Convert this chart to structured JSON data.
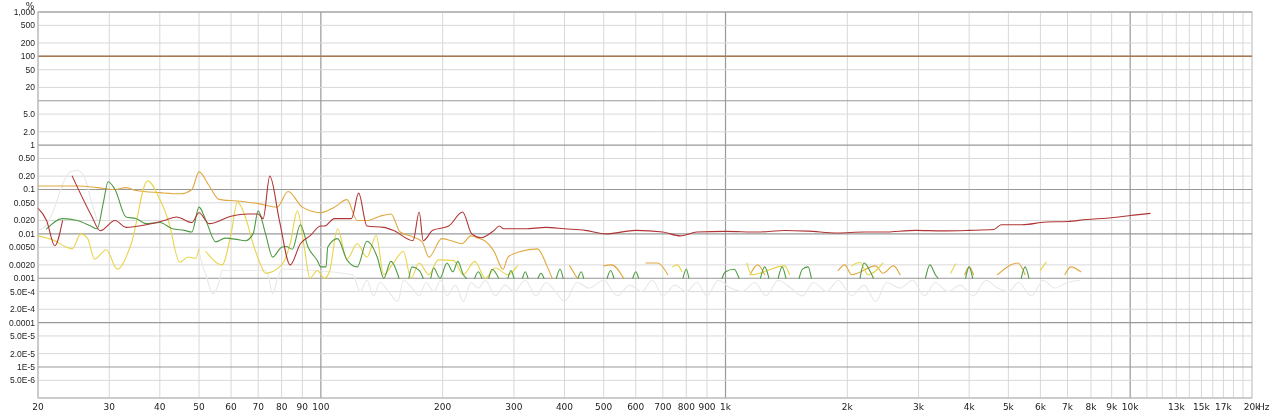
{
  "chart_data": {
    "type": "line",
    "ylabel": "%",
    "xlabel": "Hz",
    "log": "xy",
    "grid": true,
    "marker": "none",
    "line_style": "solid",
    "xlim": [
      20,
      20000
    ],
    "ylim": [
      2e-06,
      1000
    ],
    "xticks": [
      20,
      30,
      40,
      50,
      60,
      70,
      80,
      90,
      100,
      200,
      300,
      400,
      500,
      600,
      700,
      800,
      900,
      {
        "value": 1000,
        "label": "1k"
      },
      {
        "value": 2000,
        "label": "2k"
      },
      {
        "value": 3000,
        "label": "3k"
      },
      {
        "value": 4000,
        "label": "4k"
      },
      {
        "value": 5000,
        "label": "5k"
      },
      {
        "value": 6000,
        "label": "6k"
      },
      {
        "value": 7000,
        "label": "7k"
      },
      {
        "value": 8000,
        "label": "8k"
      },
      {
        "value": 9000,
        "label": "9k"
      },
      {
        "value": 10000,
        "label": "10k"
      },
      {
        "value": 11000,
        "label": null
      },
      {
        "value": 12000,
        "label": null
      },
      {
        "value": 13000,
        "label": "13k"
      },
      {
        "value": 14000,
        "label": null
      },
      {
        "value": 15000,
        "label": "15k"
      },
      {
        "value": 16000,
        "label": null
      },
      {
        "value": 17000,
        "label": "17k"
      },
      {
        "value": 18000,
        "label": null
      },
      {
        "value": 19000,
        "label": null
      },
      {
        "value": 20000,
        "label": "20k"
      }
    ],
    "yticks": [
      {
        "value": 1000,
        "label": "1,000"
      },
      500,
      200,
      100,
      50,
      20,
      {
        "value": 10,
        "label": null
      },
      {
        "value": 5,
        "label": "5.0"
      },
      {
        "value": 2,
        "label": "2.0"
      },
      1,
      {
        "value": 0.5,
        "label": "0.50"
      },
      {
        "value": 0.2,
        "label": "0.20"
      },
      0.1,
      {
        "value": 0.05,
        "label": "0.050"
      },
      {
        "value": 0.02,
        "label": "0.020"
      },
      0.01,
      {
        "value": 0.005,
        "label": "0.0050"
      },
      {
        "value": 0.002,
        "label": "0.0020"
      },
      0.001,
      {
        "value": 0.0005,
        "label": "5.0E-4"
      },
      {
        "value": 0.0002,
        "label": "2.0E-4"
      },
      0.0001,
      {
        "value": 5e-05,
        "label": "5.0E-5"
      },
      {
        "value": 2e-05,
        "label": "2.0E-5"
      },
      {
        "value": 1e-05,
        "label": "1E-5"
      },
      {
        "value": 5e-06,
        "label": "5.0E-6"
      }
    ],
    "ref_lines": [
      {
        "axis": "y",
        "value": 100,
        "color": "#a87850"
      }
    ],
    "series": [
      {
        "color": "#e8e8e8",
        "x": [
          20,
          21,
          22,
          23,
          24,
          25,
          26,
          27,
          28,
          29,
          50,
          51,
          52,
          54,
          56,
          57,
          73,
          74,
          76,
          78,
          80,
          120,
          125,
          130,
          135,
          140,
          147,
          155,
          160,
          168,
          175,
          182,
          190,
          198,
          205,
          215,
          225,
          235,
          245,
          255,
          270,
          285,
          300,
          320,
          340,
          360,
          380,
          400,
          430,
          460,
          500,
          540,
          580,
          620,
          660,
          700,
          750,
          800,
          850,
          900,
          960,
          1030,
          1100,
          1180,
          1260,
          1350,
          1450,
          1550,
          1650,
          1780,
          1900,
          2050,
          2200,
          2350,
          2500,
          2700,
          2900,
          3100,
          3300,
          3550,
          3800,
          4100,
          4400,
          4700,
          5000,
          5300,
          5700,
          6100,
          6500,
          7000,
          7500
        ],
        "values": [
          0.012,
          0.016,
          0.04,
          0.13,
          0.25,
          0.27,
          0.2,
          0.06,
          0.02,
          null,
          0.004,
          0.002,
          0.0012,
          0.00045,
          0.0008,
          0.0015,
          0.0015,
          0.0012,
          0.00045,
          0.0009,
          0.0016,
          0.0012,
          0.0005,
          0.0009,
          0.0004,
          0.0008,
          0.0005,
          0.0003,
          0.0009,
          0.0006,
          0.0004,
          0.0008,
          0.0005,
          0.0009,
          0.0004,
          0.0007,
          0.0003,
          0.0008,
          0.0006,
          0.0009,
          0.0004,
          0.0007,
          0.0005,
          0.0009,
          0.0004,
          0.0008,
          0.0005,
          0.0003,
          0.0008,
          0.0006,
          0.0009,
          0.0004,
          0.0007,
          0.0005,
          0.0009,
          0.0004,
          0.0007,
          0.0005,
          0.0008,
          0.0004,
          0.0009,
          0.0006,
          0.0005,
          0.0008,
          0.0004,
          0.0009,
          0.0006,
          0.0004,
          0.0008,
          0.0005,
          0.0009,
          0.0004,
          0.0007,
          0.0003,
          0.0008,
          0.0006,
          0.0009,
          0.0004,
          0.0008,
          0.0005,
          0.0007,
          0.0004,
          0.0009,
          0.0006,
          0.0005,
          0.0008,
          0.0004,
          0.0009,
          0.0006,
          0.0008,
          0.0009
        ]
      },
      {
        "color": "#e0a840",
        "x": [
          20,
          22,
          25,
          28,
          31,
          33,
          35,
          40,
          45,
          48,
          50,
          53,
          56,
          62,
          70,
          78,
          83,
          90,
          100,
          108,
          116,
          123,
          130,
          140,
          149,
          157,
          169,
          178,
          185,
          199,
          210,
          223,
          235,
          245,
          254,
          268,
          282,
          290,
          311,
          343,
          362,
          373,
          390,
          412,
          430,
          460,
          500,
          523,
          560,
          600,
          636,
          680,
          720,
          760,
          1150,
          1200,
          1250,
          1300,
          1900,
          1970,
          2050,
          2350,
          2450,
          2600,
          2700,
          2800,
          3900,
          4000,
          4100,
          4400,
          4700,
          5280,
          5500,
          5800,
          6900,
          7130,
          7550
        ],
        "values": [
          0.12,
          0.12,
          0.12,
          0.11,
          0.1,
          0.11,
          0.095,
          0.085,
          0.08,
          0.1,
          0.25,
          0.12,
          0.06,
          0.055,
          0.048,
          0.04,
          0.09,
          0.04,
          0.03,
          0.04,
          0.059,
          0.02,
          0.02,
          0.025,
          0.028,
          0.011,
          0.0085,
          0.0066,
          0.003,
          0.0078,
          0.007,
          0.006,
          0.009,
          0.008,
          0.007,
          0.004,
          0.0016,
          0.003,
          0.004,
          0.0046,
          0.0019,
          0.001,
          null,
          0.0019,
          0.001,
          null,
          0.0019,
          0.002,
          0.001,
          null,
          0.0022,
          0.0022,
          0.0012,
          null,
          0.0012,
          0.002,
          0.0012,
          null,
          0.0015,
          0.002,
          0.0012,
          0.0019,
          0.0013,
          0.0019,
          0.0012,
          null,
          0.0012,
          0.0018,
          0.0012,
          null,
          0.0012,
          0.0022,
          0.0012,
          null,
          0.0012,
          0.0018,
          0.0014
        ]
      },
      {
        "color": "#e8d448",
        "x": [
          20,
          22,
          23.4,
          24.3,
          25.5,
          26.5,
          27.6,
          29.5,
          31.4,
          34,
          37.3,
          40,
          42,
          44.8,
          47,
          49,
          50,
          51,
          52,
          57,
          60,
          62.2,
          65,
          68,
          71,
          73,
          80,
          84,
          87.5,
          91,
          94,
          98,
          102,
          105,
          110,
          116,
          123,
          130,
          137,
          143,
          150,
          160,
          167,
          175,
          185,
          195,
          213,
          225,
          240,
          255,
          270,
          290,
          306,
          330,
          700,
          740,
          760,
          780,
          1100,
          1130,
          1160,
          1400,
          1440,
          1500,
          2050,
          2150,
          2250,
          2450,
          2550,
          3600,
          3700,
          3850,
          6000,
          6200
        ],
        "values": [
          0.009,
          0.007,
          0.0051,
          0.0046,
          0.01,
          0.008,
          0.0027,
          0.0044,
          0.0016,
          0.006,
          0.158,
          0.06,
          0.02,
          0.0023,
          0.003,
          0.0028,
          0.0045,
          null,
          0.004,
          0.002,
          0.01,
          0.052,
          0.025,
          0.006,
          0.002,
          0.0013,
          0.002,
          0.006,
          0.033,
          0.005,
          0.001,
          0.0015,
          0.001,
          0.0014,
          0.013,
          0.0027,
          0.006,
          0.003,
          0.0092,
          0.0012,
          0.002,
          0.004,
          0.001,
          0.0022,
          0.0012,
          0.0026,
          0.0025,
          0.0012,
          0.0024,
          0.001,
          0.0017,
          0.0012,
          0.0019,
          null,
          null,
          0.0018,
          0.002,
          0.0014,
          null,
          0.0022,
          0.0012,
          0.0019,
          0.0012,
          null,
          0.0019,
          0.0023,
          0.0012,
          0.0022,
          null,
          0.0013,
          0.0021,
          null,
          0.0015,
          0.0023
        ]
      },
      {
        "color": "#4e9a44",
        "x": [
          21,
          23,
          25,
          27,
          28,
          29,
          29.8,
          31,
          33,
          35,
          37,
          40,
          43,
          46,
          48,
          50,
          52,
          55,
          58,
          62,
          65,
          68,
          70,
          73,
          76,
          80,
          82,
          85,
          89,
          93,
          98,
          100,
          103,
          104,
          110,
          116,
          123,
          130,
          138,
          143,
          149,
          156,
          160,
          165,
          168,
          175,
          179,
          182,
          187,
          190,
          197,
          205,
          212,
          218,
          225,
          229,
          232,
          240,
          245,
          250,
          255,
          260,
          265,
          275,
          282,
          290,
          295,
          300,
          305,
          315,
          320,
          325,
          330,
          344,
          350,
          356,
          360,
          382,
          390,
          397,
          400,
          432,
          440,
          446,
          450,
          510,
          520,
          530,
          535,
          590,
          600,
          610,
          620,
          785,
          800,
          812,
          820,
          980,
          1000,
          1050,
          1080,
          1100,
          1220,
          1250,
          1280,
          1300,
          1350,
          1380,
          1410,
          1420,
          1520,
          1550,
          1600,
          1630,
          1650,
          2150,
          2200,
          2280,
          2320,
          2350,
          3120,
          3200,
          3300,
          3350,
          3400,
          3920,
          4000,
          4080,
          4100,
          5380,
          5500,
          5620
        ],
        "values": [
          0.013,
          0.022,
          0.02,
          0.015,
          0.013,
          0.05,
          0.15,
          0.1,
          0.024,
          0.022,
          0.017,
          0.018,
          0.013,
          0.012,
          0.011,
          0.04,
          0.02,
          0.0066,
          0.008,
          0.0075,
          0.007,
          0.01,
          0.033,
          0.01,
          0.003,
          0.005,
          0.0052,
          0.0045,
          0.016,
          0.005,
          0.0025,
          0.0018,
          0.0018,
          0.005,
          0.0078,
          0.0026,
          0.0018,
          0.0068,
          0.0029,
          0.001,
          0.0024,
          0.001,
          null,
          0.001,
          0.0018,
          0.0015,
          0.001,
          null,
          0.001,
          0.0017,
          0.001,
          0.0022,
          0.0014,
          0.0024,
          0.0012,
          0.001,
          null,
          0.001,
          0.0014,
          0.001,
          null,
          0.001,
          0.0016,
          0.001,
          null,
          0.001,
          0.0015,
          0.001,
          null,
          0.001,
          0.0014,
          0.001,
          null,
          0.001,
          0.0013,
          0.001,
          null,
          0.001,
          0.0016,
          0.001,
          null,
          0.001,
          0.0014,
          0.001,
          null,
          0.001,
          0.0015,
          0.001,
          null,
          0.001,
          0.0014,
          0.001,
          null,
          0.001,
          0.0016,
          0.001,
          null,
          0.001,
          0.0014,
          0.0016,
          0.001,
          null,
          0.001,
          0.0018,
          0.001,
          null,
          0.001,
          0.0018,
          0.001,
          null,
          0.001,
          0.0016,
          0.0018,
          0.001,
          null,
          0.001,
          0.0022,
          0.0014,
          0.001,
          null,
          0.001,
          0.002,
          0.0012,
          0.001,
          null,
          0.001,
          0.0018,
          0.001,
          null,
          0.001,
          0.0018,
          0.001
        ]
      },
      {
        "color": "#b03434",
        "x": [
          20,
          21,
          22,
          23,
          24,
          24.3,
          27.1,
          28.5,
          31,
          33,
          37,
          41,
          44,
          48,
          50,
          53,
          60,
          66,
          70,
          72,
          74.8,
          79,
          84,
          89,
          94,
          100,
          102,
          108,
          119,
          124,
          130,
          143,
          151,
          169,
          175,
          179,
          189,
          207,
          224,
          236,
          249,
          268,
          276,
          283,
          320,
          360,
          400,
          450,
          507,
          600,
          700,
          773,
          850,
          1000,
          1200,
          1405,
          1600,
          1890,
          2200,
          2450,
          2955,
          3430,
          4000,
          4600,
          4800,
          5400,
          6200,
          7000,
          7800,
          9000,
          10000,
          11200
        ],
        "values": [
          0.038,
          0.02,
          0.0054,
          0.02,
          null,
          0.2,
          0.026,
          0.0118,
          0.02,
          0.014,
          0.016,
          0.02,
          0.024,
          0.018,
          0.03,
          0.017,
          0.025,
          0.028,
          0.028,
          0.022,
          0.2,
          0.02,
          0.002,
          0.006,
          0.009,
          0.015,
          0.015,
          0.022,
          0.022,
          0.083,
          0.015,
          0.014,
          0.012,
          0.007,
          0.031,
          0.007,
          0.012,
          0.015,
          0.031,
          0.01,
          0.0082,
          0.012,
          0.015,
          0.013,
          0.013,
          0.014,
          0.013,
          0.012,
          0.01,
          0.012,
          0.011,
          0.009,
          0.011,
          0.0114,
          0.011,
          0.0119,
          0.0115,
          0.0105,
          0.011,
          0.011,
          0.012,
          0.0117,
          0.012,
          0.0125,
          0.016,
          0.016,
          0.0185,
          0.019,
          0.021,
          0.023,
          0.026,
          0.029
        ]
      }
    ]
  }
}
